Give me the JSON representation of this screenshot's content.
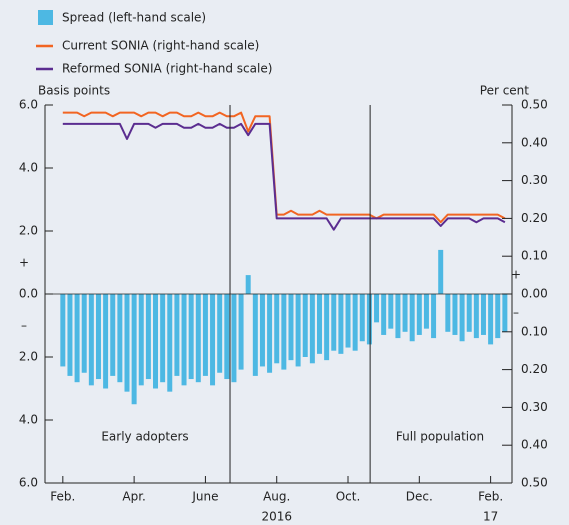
{
  "chart_data": {
    "type": "bar-line",
    "x": [
      1.0,
      1.2,
      1.4,
      1.6,
      1.8,
      2.0,
      2.2,
      2.4,
      2.6,
      2.8,
      3.0,
      3.2,
      3.4,
      3.6,
      3.8,
      4.0,
      4.2,
      4.4,
      4.6,
      4.8,
      5.0,
      5.2,
      5.4,
      5.6,
      5.8,
      6.0,
      6.2,
      6.4,
      6.6,
      6.8,
      7.0,
      7.2,
      7.4,
      7.6,
      7.8,
      8.0,
      8.2,
      8.4,
      8.6,
      8.8,
      9.0,
      9.2,
      9.4,
      9.6,
      9.8,
      10.0,
      10.2,
      10.4,
      10.6,
      10.8,
      11.0,
      11.2,
      11.4,
      11.6,
      11.8,
      12.0,
      12.2,
      12.4,
      12.6,
      12.8,
      13.0,
      13.2,
      13.4
    ],
    "series": [
      {
        "name": "Spread (left-hand scale)",
        "color": "#4db8e3",
        "kind": "bar",
        "axis": "y",
        "values": [
          -2.3,
          -2.6,
          -2.8,
          -2.5,
          -2.9,
          -2.7,
          -3.0,
          -2.6,
          -2.8,
          -3.1,
          -3.5,
          -2.9,
          -2.7,
          -3.0,
          -2.8,
          -3.1,
          -2.6,
          -2.9,
          -2.7,
          -2.8,
          -2.6,
          -2.9,
          -2.5,
          -2.7,
          -2.8,
          -2.4,
          0.6,
          -2.6,
          -2.3,
          -2.5,
          -2.2,
          -2.4,
          -2.1,
          -2.3,
          -2.0,
          -2.2,
          -1.9,
          -2.1,
          -1.8,
          -1.9,
          -1.7,
          -1.8,
          -1.5,
          -1.6,
          -0.9,
          -1.3,
          -1.1,
          -1.4,
          -1.2,
          -1.5,
          -1.3,
          -1.1,
          -1.4,
          1.4,
          -1.2,
          -1.3,
          -1.5,
          -1.2,
          -1.4,
          -1.3,
          -1.6,
          -1.4,
          -1.2
        ]
      },
      {
        "name": "Current SONIA (right-hand scale)",
        "color": "#f26522",
        "kind": "line",
        "axis": "y2",
        "values": [
          0.48,
          0.48,
          0.48,
          0.47,
          0.48,
          0.48,
          0.48,
          0.47,
          0.48,
          0.48,
          0.48,
          0.47,
          0.48,
          0.48,
          0.47,
          0.48,
          0.48,
          0.47,
          0.47,
          0.48,
          0.47,
          0.47,
          0.48,
          0.47,
          0.47,
          0.48,
          0.43,
          0.47,
          0.47,
          0.47,
          0.21,
          0.21,
          0.22,
          0.21,
          0.21,
          0.21,
          0.22,
          0.21,
          0.21,
          0.21,
          0.21,
          0.21,
          0.21,
          0.21,
          0.2,
          0.21,
          0.21,
          0.21,
          0.21,
          0.21,
          0.21,
          0.21,
          0.21,
          0.19,
          0.21,
          0.21,
          0.21,
          0.21,
          0.21,
          0.21,
          0.21,
          0.21,
          0.2
        ]
      },
      {
        "name": "Reformed SONIA (right-hand scale)",
        "color": "#5b2d90",
        "kind": "line",
        "axis": "y2",
        "values": [
          0.45,
          0.45,
          0.45,
          0.45,
          0.45,
          0.45,
          0.45,
          0.45,
          0.45,
          0.41,
          0.45,
          0.45,
          0.45,
          0.44,
          0.45,
          0.45,
          0.45,
          0.44,
          0.44,
          0.45,
          0.44,
          0.44,
          0.45,
          0.44,
          0.44,
          0.45,
          0.42,
          0.45,
          0.45,
          0.45,
          0.2,
          0.2,
          0.2,
          0.2,
          0.2,
          0.2,
          0.2,
          0.2,
          0.17,
          0.2,
          0.2,
          0.2,
          0.2,
          0.2,
          0.2,
          0.2,
          0.2,
          0.2,
          0.2,
          0.2,
          0.2,
          0.2,
          0.2,
          0.18,
          0.2,
          0.2,
          0.2,
          0.2,
          0.19,
          0.2,
          0.2,
          0.2,
          0.19
        ]
      }
    ],
    "y_label": "Basis points",
    "y2_label": "Per cent",
    "ylim": [
      -6,
      6
    ],
    "yticks": [
      {
        "value": 6,
        "label": "6.0"
      },
      {
        "value": 4,
        "label": "4.0"
      },
      {
        "value": 2,
        "label": "2.0"
      },
      {
        "value": 0,
        "label": "0.0"
      },
      {
        "value": -2,
        "label": "2.0"
      },
      {
        "value": -4,
        "label": "4.0"
      },
      {
        "value": -6,
        "label": "6.0"
      }
    ],
    "y2lim": [
      -0.5,
      0.5
    ],
    "y2ticks": [
      {
        "value": 0.5,
        "label": "0.50"
      },
      {
        "value": 0.4,
        "label": "0.40"
      },
      {
        "value": 0.3,
        "label": "0.30"
      },
      {
        "value": 0.2,
        "label": "0.20"
      },
      {
        "value": 0.1,
        "label": "0.10"
      },
      {
        "value": 0,
        "label": "0.00"
      },
      {
        "value": -0.1,
        "label": "0.10"
      },
      {
        "value": -0.2,
        "label": "0.20"
      },
      {
        "value": -0.3,
        "label": "0.30"
      },
      {
        "value": -0.4,
        "label": "0.40"
      },
      {
        "value": -0.5,
        "label": "0.50"
      }
    ],
    "xlim": [
      0.5,
      13.6
    ],
    "xticks": [
      {
        "value": 1,
        "label": "Feb."
      },
      {
        "value": 3,
        "label": "Apr."
      },
      {
        "value": 5,
        "label": "June"
      },
      {
        "value": 7,
        "label": "Aug."
      },
      {
        "value": 9,
        "label": "Oct."
      },
      {
        "value": 11,
        "label": "Dec."
      },
      {
        "value": 13,
        "label": "Feb."
      }
    ],
    "x_group_labels": [
      {
        "value": 7,
        "label": "2016"
      },
      {
        "value": 13,
        "label": "17"
      }
    ],
    "vlines": [
      5.69,
      9.62
    ],
    "annotations": [
      "Early adopters",
      "Full population"
    ],
    "sign_labels": [
      "+",
      "–"
    ]
  }
}
